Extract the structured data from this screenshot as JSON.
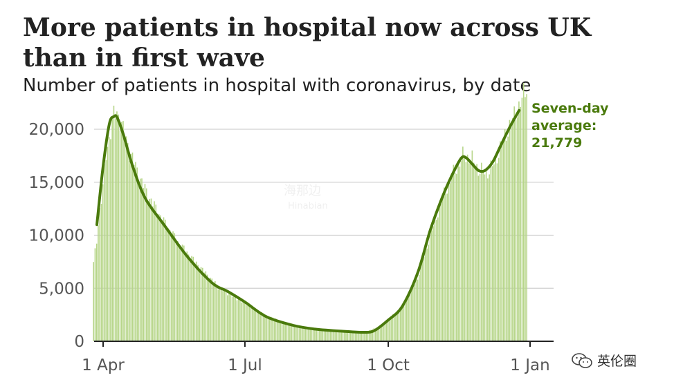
{
  "header": {
    "title": "More patients in hospital now across UK than in first wave",
    "subtitle": "Number of patients in hospital with coronavirus, by date"
  },
  "annotation": {
    "line1": "Seven-day",
    "line2": "average:",
    "line3": "21,779"
  },
  "watermark": {
    "text": "英伦圈",
    "faint_text": "海那边",
    "faint_sub": "Hinabian"
  },
  "colors": {
    "line": "#4a7a0c",
    "bars": "#b7d68a",
    "grid": "#cfcfcf",
    "axis": "#222222",
    "annotation": "#4a7a0c"
  },
  "chart_data": {
    "type": "bar",
    "title": "More patients in hospital now across UK than in first wave",
    "subtitle": "Number of patients in hospital with coronavirus, by date",
    "xlabel": "",
    "ylabel": "",
    "ylim": [
      0,
      23000
    ],
    "yticks": [
      0,
      5000,
      10000,
      15000,
      20000
    ],
    "ytick_labels": [
      "0",
      "5,000",
      "10,000",
      "15,000",
      "20,000"
    ],
    "xticks": [
      "1 Apr",
      "1 Jul",
      "1 Oct",
      "1 Jan"
    ],
    "x_range": [
      "2020-03-26",
      "2020-12-29"
    ],
    "grid": true,
    "series": [
      {
        "kind": "daily_bars",
        "keypoints": [
          [
            "2020-03-26",
            7300
          ],
          [
            "2020-03-28",
            9500
          ],
          [
            "2020-03-30",
            12500
          ],
          [
            "2020-04-01",
            14500
          ],
          [
            "2020-04-03",
            17500
          ],
          [
            "2020-04-06",
            20000
          ],
          [
            "2020-04-08",
            21300
          ],
          [
            "2020-04-10",
            21500
          ],
          [
            "2020-04-12",
            21000
          ],
          [
            "2020-04-15",
            19500
          ],
          [
            "2020-04-18",
            18000
          ],
          [
            "2020-04-22",
            16500
          ],
          [
            "2020-04-26",
            15000
          ],
          [
            "2020-05-01",
            13500
          ],
          [
            "2020-05-10",
            11300
          ],
          [
            "2020-05-20",
            9200
          ],
          [
            "2020-06-01",
            7200
          ],
          [
            "2020-06-15",
            5000
          ],
          [
            "2020-07-01",
            3600
          ],
          [
            "2020-07-15",
            2400
          ],
          [
            "2020-08-01",
            1500
          ],
          [
            "2020-08-15",
            1150
          ],
          [
            "2020-09-01",
            900
          ],
          [
            "2020-09-15",
            850
          ],
          [
            "2020-09-25",
            1300
          ],
          [
            "2020-10-01",
            2000
          ],
          [
            "2020-10-10",
            3200
          ],
          [
            "2020-10-20",
            6000
          ],
          [
            "2020-10-28",
            10000
          ],
          [
            "2020-11-05",
            13500
          ],
          [
            "2020-11-12",
            15800
          ],
          [
            "2020-11-18",
            17400
          ],
          [
            "2020-11-23",
            17300
          ],
          [
            "2020-11-28",
            16200
          ],
          [
            "2020-12-03",
            15800
          ],
          [
            "2020-12-08",
            16700
          ],
          [
            "2020-12-13",
            18600
          ],
          [
            "2020-12-18",
            20300
          ],
          [
            "2020-12-22",
            21500
          ],
          [
            "2020-12-26",
            22800
          ],
          [
            "2020-12-29",
            24000
          ]
        ]
      },
      {
        "kind": "seven_day_average",
        "keypoints": [
          [
            "2020-03-28",
            11000
          ],
          [
            "2020-04-01",
            16500
          ],
          [
            "2020-04-05",
            20500
          ],
          [
            "2020-04-08",
            21200
          ],
          [
            "2020-04-10",
            21100
          ],
          [
            "2020-04-14",
            19500
          ],
          [
            "2020-04-20",
            16500
          ],
          [
            "2020-04-28",
            13500
          ],
          [
            "2020-05-10",
            11000
          ],
          [
            "2020-05-25",
            8000
          ],
          [
            "2020-06-10",
            5500
          ],
          [
            "2020-06-20",
            4700
          ],
          [
            "2020-07-01",
            3700
          ],
          [
            "2020-07-15",
            2300
          ],
          [
            "2020-08-01",
            1500
          ],
          [
            "2020-08-15",
            1150
          ],
          [
            "2020-09-01",
            950
          ],
          [
            "2020-09-15",
            850
          ],
          [
            "2020-09-22",
            1000
          ],
          [
            "2020-10-01",
            2000
          ],
          [
            "2020-10-10",
            3300
          ],
          [
            "2020-10-20",
            6500
          ],
          [
            "2020-10-28",
            10500
          ],
          [
            "2020-11-05",
            13700
          ],
          [
            "2020-11-12",
            16000
          ],
          [
            "2020-11-17",
            17300
          ],
          [
            "2020-11-20",
            17300
          ],
          [
            "2020-11-24",
            16700
          ],
          [
            "2020-11-28",
            16100
          ],
          [
            "2020-12-02",
            16100
          ],
          [
            "2020-12-07",
            16900
          ],
          [
            "2020-12-12",
            18400
          ],
          [
            "2020-12-18",
            20200
          ],
          [
            "2020-12-24",
            21779
          ]
        ]
      }
    ],
    "annotations": [
      "Seven-day",
      "average:",
      "21,779"
    ]
  }
}
